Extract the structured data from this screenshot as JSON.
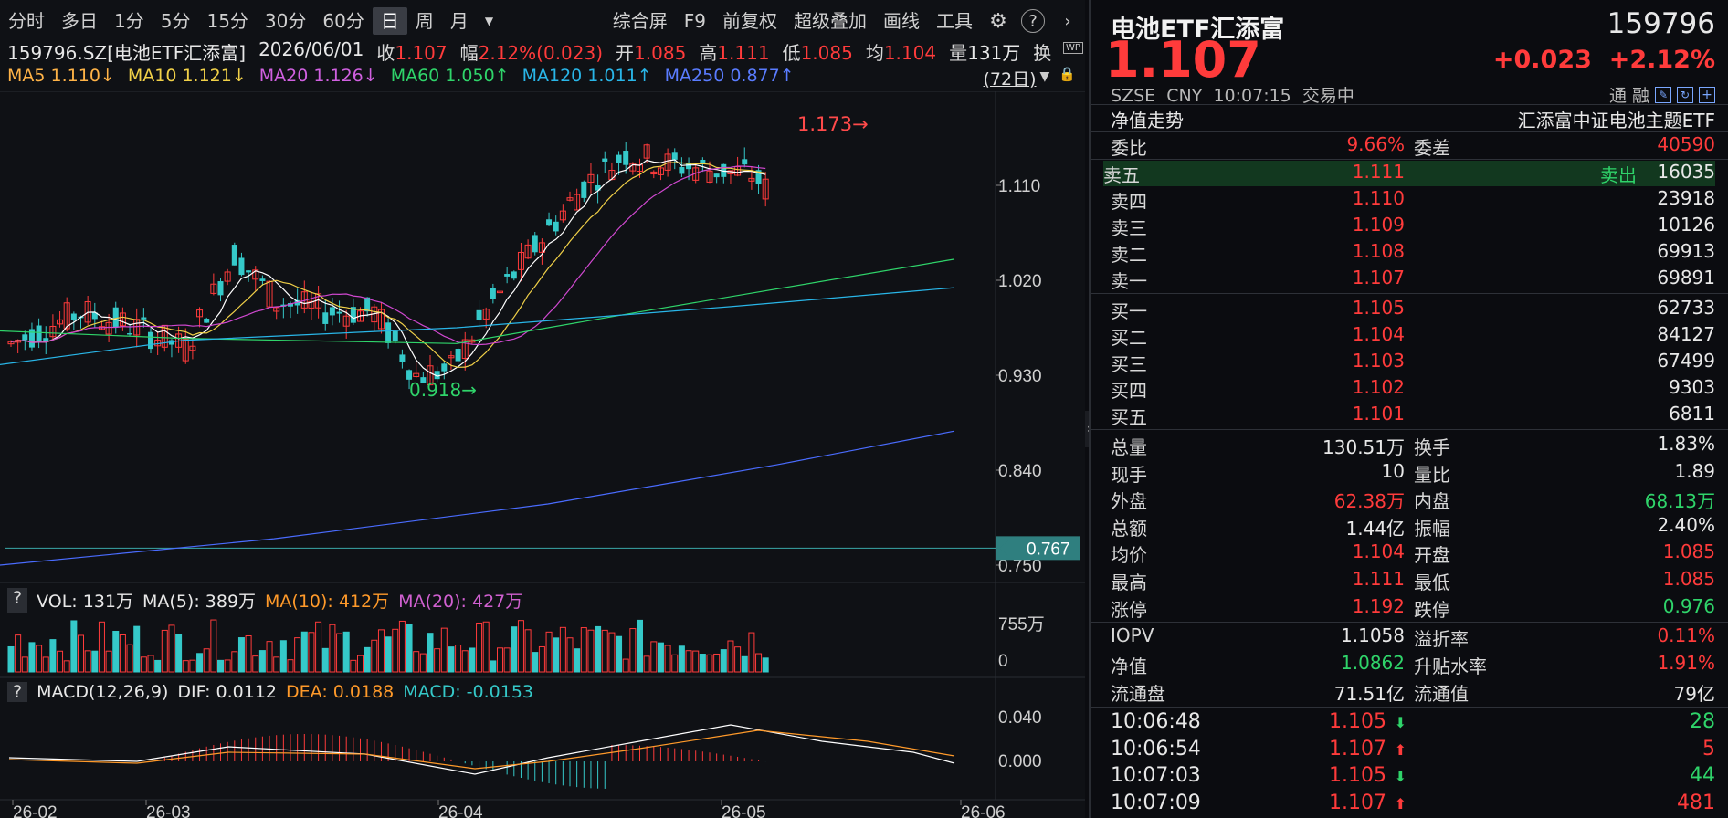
{
  "toolbar": {
    "items": [
      "分时",
      "多日",
      "1分",
      "5分",
      "15分",
      "30分",
      "60分",
      "日",
      "周",
      "月"
    ],
    "active": "日",
    "right_items": [
      "综合屏",
      "F9",
      "前复权",
      "超级叠加",
      "画线",
      "工具"
    ]
  },
  "info": {
    "code": "159796.SZ[电池ETF汇添富]",
    "date": "2026/06/01",
    "close_label": "收",
    "close": "1.107",
    "change_label": "幅",
    "change": "2.12%(0.023)",
    "open_label": "开",
    "open": "1.085",
    "high_label": "高",
    "high": "1.111",
    "low_label": "低",
    "low": "1.085",
    "avg_label": "均",
    "avg": "1.104",
    "vol_label": "量",
    "vol": "131万",
    "turn_label": "换"
  },
  "ma": {
    "ma5": "MA5 1.110↓",
    "ma10": "MA10 1.121↓",
    "ma20": "MA20 1.126↓",
    "ma60": "MA60 1.050↑",
    "ma120": "MA120 1.011↑",
    "ma250": "MA250 0.877↑",
    "period": "(72日)"
  },
  "price_axis": [
    "1.110",
    "1.020",
    "0.930",
    "0.840",
    "0.750"
  ],
  "price_marker": "0.767",
  "annotations": {
    "high": "1.173→",
    "low": "0.918→"
  },
  "vol_panel": {
    "q": "?",
    "vol": "VOL: 131万",
    "ma5": "MA(5): 389万",
    "ma10": "MA(10): 412万",
    "ma20": "MA(20): 427万",
    "axis_top": "755万",
    "axis_bottom": "0"
  },
  "macd_panel": {
    "q": "?",
    "title": "MACD(12,26,9)",
    "dif": "DIF: 0.0112",
    "dea": "DEA: 0.0188",
    "macd": "MACD: -0.0153",
    "axis_top": "0.040",
    "axis_bottom": "0.000"
  },
  "date_axis": [
    "26-02",
    "26-03",
    "26-04",
    "26-05",
    "26-06"
  ],
  "colors": {
    "up": "#ff3b3b",
    "down": "#35c9c9",
    "ma5": "#ffffff",
    "ma10": "#f0d048",
    "ma20": "#d048d0",
    "ma60": "#2fd46a",
    "ma120": "#29b6e8",
    "ma250": "#4a6cff"
  },
  "chart_data": {
    "type": "candlestick",
    "title": "159796.SZ[电池ETF汇添富]",
    "ylim": [
      0.75,
      1.19
    ],
    "yticks": [
      1.11,
      1.02,
      0.93,
      0.84,
      0.75
    ],
    "x": [
      "26-02",
      "26-03",
      "26-04",
      "26-05",
      "26-06"
    ],
    "marked_high": 1.173,
    "marked_low": 0.918,
    "current_line": 0.767,
    "volume_max_label": "755万",
    "macd": {
      "dif": 0.0112,
      "dea": 0.0188,
      "macd": -0.0153
    }
  },
  "right": {
    "name": "电池ETF汇添富",
    "code": "159796",
    "price": "1.107",
    "chg": "+0.023",
    "chg_pct": "+2.12%",
    "market": "SZSE",
    "currency": "CNY",
    "time": "10:07:15",
    "status": "交易中",
    "tong": "通",
    "rong": "融",
    "nav_label": "净值走势",
    "fund_name": "汇添富中证电池主题ETF",
    "weibi_label": "委比",
    "weibi": "9.66%",
    "weicha_label": "委差",
    "weicha": "40590",
    "sell_tag": "卖出",
    "asks": [
      {
        "label": "卖五",
        "price": "1.111",
        "vol": "16035"
      },
      {
        "label": "卖四",
        "price": "1.110",
        "vol": "23918"
      },
      {
        "label": "卖三",
        "price": "1.109",
        "vol": "10126"
      },
      {
        "label": "卖二",
        "price": "1.108",
        "vol": "69913"
      },
      {
        "label": "卖一",
        "price": "1.107",
        "vol": "69891"
      }
    ],
    "bids": [
      {
        "label": "买一",
        "price": "1.105",
        "vol": "62733"
      },
      {
        "label": "买二",
        "price": "1.104",
        "vol": "84127"
      },
      {
        "label": "买三",
        "price": "1.103",
        "vol": "67499"
      },
      {
        "label": "买四",
        "price": "1.102",
        "vol": "9303"
      },
      {
        "label": "买五",
        "price": "1.101",
        "vol": "6811"
      }
    ],
    "stats": [
      {
        "l1": "总量",
        "v1": "130.51万",
        "c1": "white",
        "l2": "换手",
        "v2": "1.83%",
        "c2": "white"
      },
      {
        "l1": "现手",
        "v1": "10",
        "c1": "white",
        "l2": "量比",
        "v2": "1.89",
        "c2": "white"
      },
      {
        "l1": "外盘",
        "v1": "62.38万",
        "c1": "up",
        "l2": "内盘",
        "v2": "68.13万",
        "c2": "down"
      },
      {
        "l1": "总额",
        "v1": "1.44亿",
        "c1": "white",
        "l2": "振幅",
        "v2": "2.40%",
        "c2": "white"
      },
      {
        "l1": "均价",
        "v1": "1.104",
        "c1": "up",
        "l2": "开盘",
        "v2": "1.085",
        "c2": "up"
      },
      {
        "l1": "最高",
        "v1": "1.111",
        "c1": "up",
        "l2": "最低",
        "v2": "1.085",
        "c2": "up"
      },
      {
        "l1": "涨停",
        "v1": "1.192",
        "c1": "up",
        "l2": "跌停",
        "v2": "0.976",
        "c2": "down"
      }
    ],
    "stats2": [
      {
        "l1": "IOPV",
        "v1": "1.1058",
        "c1": "white",
        "l2": "溢折率",
        "v2": "0.11%",
        "c2": "up"
      },
      {
        "l1": "净值",
        "v1": "1.0862",
        "c1": "down",
        "l2": "升贴水率",
        "v2": "1.91%",
        "c2": "up"
      },
      {
        "l1": "流通盘",
        "v1": "71.51亿",
        "c1": "white",
        "l2": "流通值",
        "v2": "79亿",
        "c2": "white"
      }
    ],
    "ticks": [
      {
        "time": "10:06:48",
        "price": "1.105",
        "dir": "down",
        "vol": "28"
      },
      {
        "time": "10:06:54",
        "price": "1.107",
        "dir": "up",
        "vol": "5"
      },
      {
        "time": "10:07:03",
        "price": "1.105",
        "dir": "down",
        "vol": "44"
      },
      {
        "time": "10:07:09",
        "price": "1.107",
        "dir": "up",
        "vol": "481"
      }
    ]
  }
}
